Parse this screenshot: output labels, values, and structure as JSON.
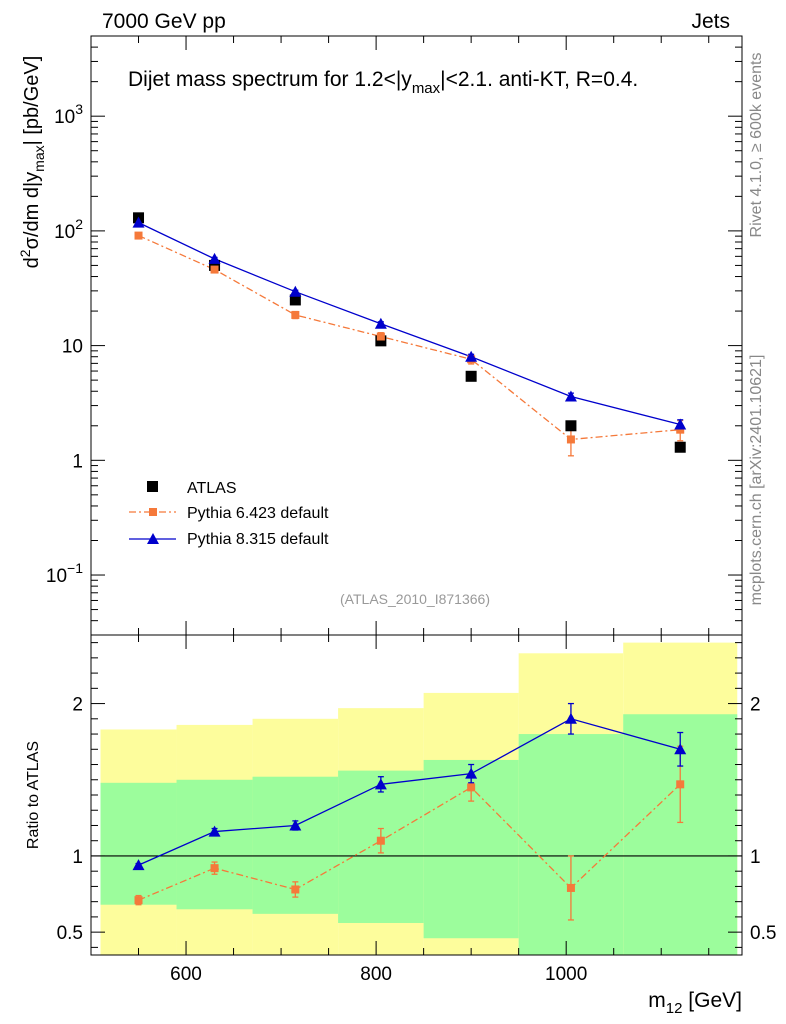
{
  "header": {
    "left": "7000 GeV pp",
    "right": "Jets"
  },
  "side_labels": {
    "rivet": "Rivet 4.1.0, ≥ 600k events",
    "mcplots": "mcplots.cern.ch [arXiv:2401.10621]"
  },
  "main_title": {
    "prefix": "Dijet mass spectrum for 1.2<|y",
    "sub": "max",
    "suffix": "|<2.1.  anti-KT, R=0.4."
  },
  "watermark": "(ATLAS_2010_I871366)",
  "y_label_main": {
    "p1": "d",
    "sup": "2",
    "p2": "σ/dm d|y",
    "sub": "max",
    "p3": "| [pb/GeV]"
  },
  "y_label_ratio": "Ratio to ATLAS",
  "x_label": {
    "main": "m",
    "sub": "12",
    "unit": " [GeV]"
  },
  "colors": {
    "atlas": "#000000",
    "pythia6": "#f5793a",
    "pythia8": "#0000cc",
    "band_inner": "#9cfd9c",
    "band_outer": "#fdfd9c"
  },
  "chart_data": [
    {
      "type": "line",
      "title": "Dijet mass spectrum for 1.2<|ymax|<2.1.  anti-KT, R=0.4.",
      "xlabel": "m12 [GeV]",
      "ylabel": "d2σ/dm d|ymax| [pb/GeV]",
      "xlim": [
        500,
        1185
      ],
      "ylim": [
        0.03,
        5000
      ],
      "yscale": "log",
      "legend_position": "lower-left",
      "y_ticks": [
        {
          "v": 0.1,
          "b": "10",
          "e": "−1"
        },
        {
          "v": 1,
          "b": "1",
          "e": ""
        },
        {
          "v": 10,
          "b": "10",
          "e": ""
        },
        {
          "v": 100,
          "b": "10",
          "e": "2"
        },
        {
          "v": 1000,
          "b": "10",
          "e": "3"
        }
      ],
      "series": [
        {
          "name": "ATLAS",
          "marker": "square",
          "x": [
            550,
            630,
            715,
            805,
            900,
            1005,
            1120
          ],
          "y": [
            130,
            50,
            25,
            11,
            5.4,
            2.0,
            1.3
          ],
          "bins": [
            [
              510,
              590
            ],
            [
              590,
              670
            ],
            [
              670,
              760
            ],
            [
              760,
              850
            ],
            [
              850,
              950
            ],
            [
              950,
              1060
            ],
            [
              1060,
              1180
            ]
          ]
        },
        {
          "name": "Pythia 6.423 default",
          "marker": "square-small",
          "x": [
            550,
            630,
            715,
            805,
            900,
            1005,
            1120
          ],
          "y": [
            91,
            46,
            18.5,
            12.0,
            7.6,
            1.52,
            1.85
          ],
          "err": [
            0.05,
            0.05,
            0.07,
            0.08,
            0.09,
            0.28,
            0.2
          ]
        },
        {
          "name": "Pythia 8.315 default",
          "marker": "triangle",
          "x": [
            550,
            630,
            715,
            805,
            900,
            1005,
            1120
          ],
          "y": [
            118,
            57,
            29.5,
            15.5,
            8.0,
            3.6,
            2.05
          ],
          "err": [
            0.03,
            0.03,
            0.03,
            0.04,
            0.05,
            0.07,
            0.1
          ]
        }
      ]
    },
    {
      "type": "line",
      "title": "",
      "xlabel": "m12 [GeV]",
      "ylabel": "Ratio to ATLAS",
      "xlim": [
        500,
        1185
      ],
      "ylim": [
        0.35,
        2.45
      ],
      "x_ticks": [
        600,
        800,
        1000
      ],
      "y_ticks": [
        0.5,
        1,
        2
      ],
      "reference_line": 1,
      "bands": {
        "bins": [
          [
            510,
            590
          ],
          [
            590,
            670
          ],
          [
            670,
            760
          ],
          [
            760,
            850
          ],
          [
            850,
            950
          ],
          [
            950,
            1060
          ],
          [
            1060,
            1180
          ]
        ],
        "inner_low": [
          0.68,
          0.65,
          0.62,
          0.56,
          0.46,
          0.3,
          0.3
        ],
        "inner_high": [
          1.48,
          1.5,
          1.52,
          1.56,
          1.63,
          1.8,
          1.93
        ],
        "outer_low": [
          0.3,
          0.3,
          0.3,
          0.3,
          0.3,
          0.3,
          0.3
        ],
        "outer_high": [
          1.83,
          1.86,
          1.9,
          1.97,
          2.07,
          2.33,
          2.4
        ]
      },
      "series": [
        {
          "name": "Pythia 6.423 default",
          "x": [
            550,
            630,
            715,
            805,
            900,
            1005,
            1120
          ],
          "y": [
            0.71,
            0.92,
            0.78,
            1.1,
            1.45,
            0.79,
            1.47
          ],
          "err": [
            0.03,
            0.04,
            0.05,
            0.08,
            0.09,
            0.21,
            0.25
          ]
        },
        {
          "name": "Pythia 8.315 default",
          "x": [
            550,
            630,
            715,
            805,
            900,
            1005,
            1120
          ],
          "y": [
            0.94,
            1.16,
            1.2,
            1.47,
            1.54,
            1.9,
            1.7
          ],
          "err": [
            0.01,
            0.02,
            0.03,
            0.05,
            0.06,
            0.1,
            0.11
          ]
        }
      ]
    }
  ]
}
